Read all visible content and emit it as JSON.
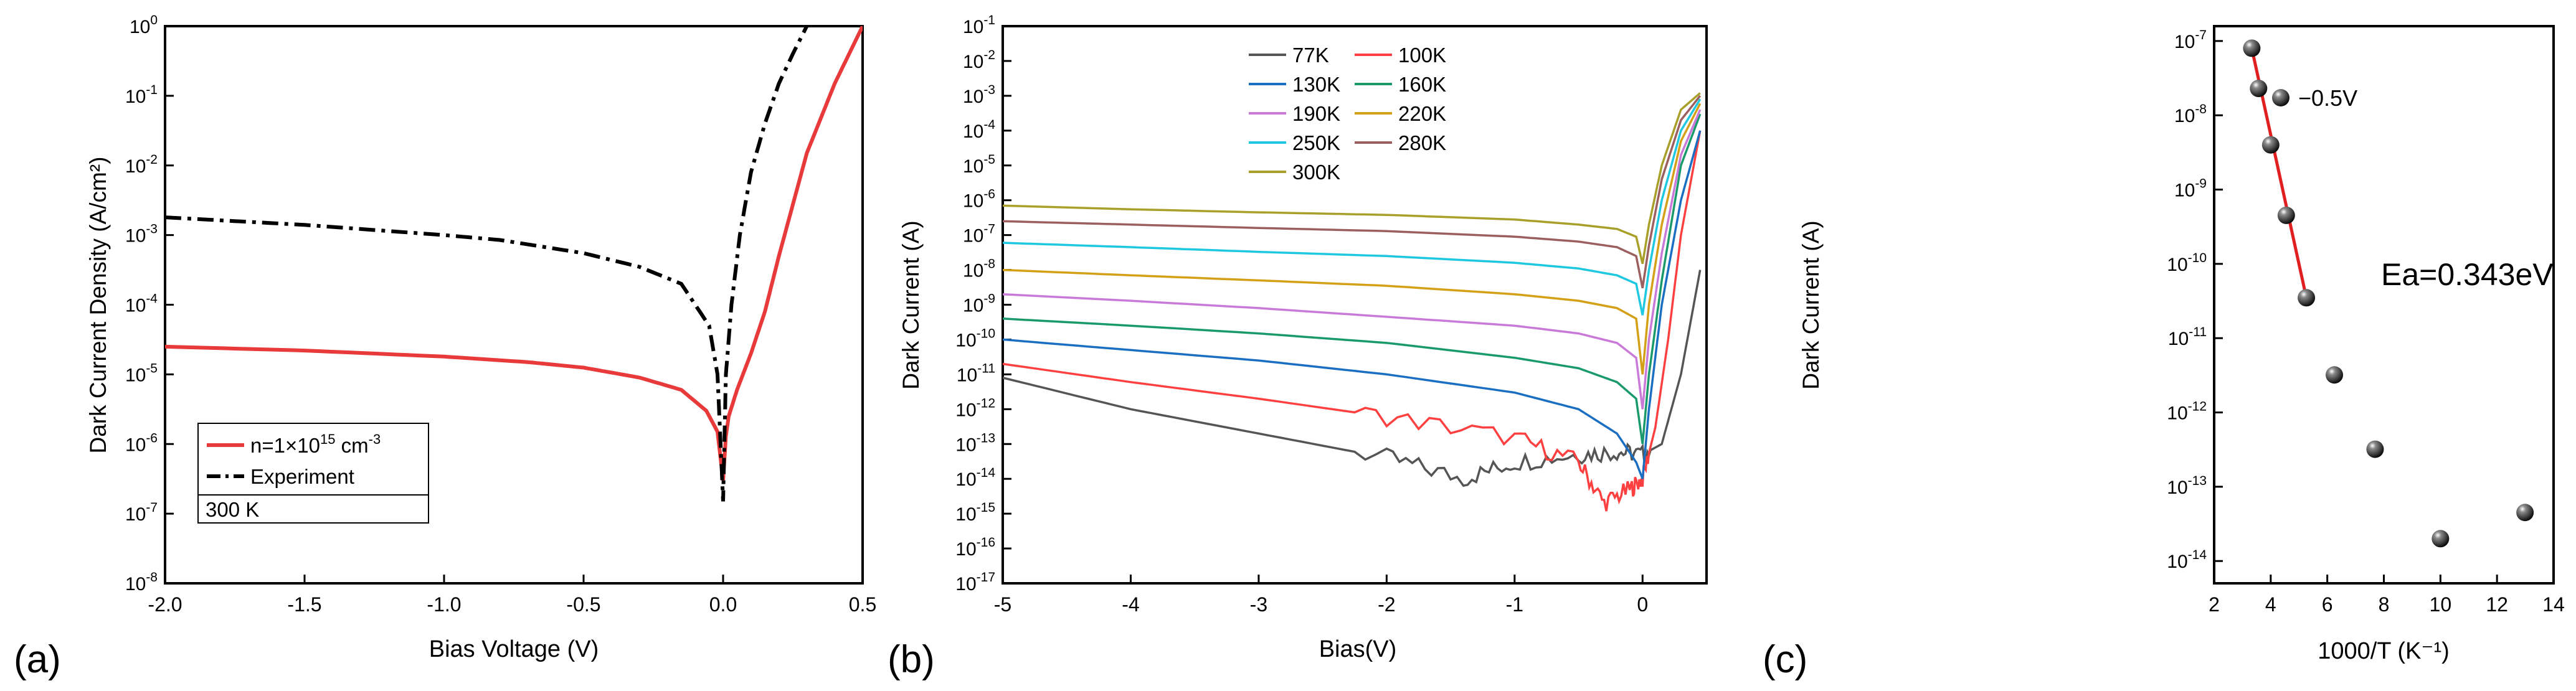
{
  "chart_data": [
    {
      "panel_label": "(a)",
      "type": "line",
      "xlabel": "Bias Voltage (V)",
      "ylabel": "Dark Current Density (A/cm²)",
      "yscale": "log",
      "xlim": [
        -2.0,
        0.5
      ],
      "ylim_exp": [
        -8,
        0
      ],
      "xticks": [
        "-2.0",
        "-1.5",
        "-1.0",
        "-0.5",
        "0.0",
        "0.5"
      ],
      "ytick_exps": [
        "-8",
        "-7",
        "-6",
        "-5",
        "-4",
        "-3",
        "-2",
        "-1",
        "0"
      ],
      "legend": {
        "entries": [
          {
            "label": "n=1×10",
            "sup": "15",
            "tail": " cm",
            "tail_sup": "-3",
            "color": "#e83a3a",
            "dash": "solid"
          },
          {
            "label": "Experiment",
            "color": "#000000",
            "dash": "dashdot"
          }
        ],
        "note": "300 K",
        "placement": "bottom-left"
      },
      "series": [
        {
          "name": "n=1×10^15 cm^-3",
          "color": "#e83a3a",
          "dash": "solid",
          "x": [
            -2.0,
            -1.5,
            -1.0,
            -0.7,
            -0.5,
            -0.3,
            -0.15,
            -0.06,
            -0.02,
            0.0,
            0.01,
            0.02,
            0.05,
            0.1,
            0.15,
            0.2,
            0.3,
            0.4,
            0.5
          ],
          "y": [
            2.5e-05,
            2.2e-05,
            1.8e-05,
            1.5e-05,
            1.25e-05,
            9e-06,
            6e-06,
            3e-06,
            1.5e-06,
            3e-07,
            1.3e-06,
            2.5e-06,
            6e-06,
            2e-05,
            8e-05,
            0.0005,
            0.015,
            0.15,
            1.0
          ]
        },
        {
          "name": "Experiment",
          "color": "#000000",
          "dash": "dashdot",
          "x": [
            -2.0,
            -1.5,
            -1.0,
            -0.8,
            -0.5,
            -0.3,
            -0.15,
            -0.05,
            -0.02,
            0.0,
            0.01,
            0.03,
            0.06,
            0.1,
            0.15,
            0.2,
            0.25,
            0.3
          ],
          "y": [
            0.0018,
            0.0014,
            0.001,
            0.00085,
            0.00055,
            0.00035,
            0.0002,
            5e-05,
            1e-05,
            1.5e-07,
            1e-05,
            0.0001,
            0.001,
            0.008,
            0.04,
            0.15,
            0.4,
            1.0
          ]
        }
      ]
    },
    {
      "panel_label": "(b)",
      "type": "line",
      "xlabel": "Bias(V)",
      "ylabel": "Dark Current (A)",
      "yscale": "log",
      "xlim": [
        -5,
        0.5
      ],
      "ylim_exp": [
        -17,
        -1
      ],
      "xticks": [
        "-5",
        "-4",
        "-3",
        "-2",
        "-1",
        "0"
      ],
      "ytick_exps": [
        "-17",
        "-16",
        "-15",
        "-14",
        "-13",
        "-12",
        "-11",
        "-10",
        "-9",
        "-8",
        "-7",
        "-6",
        "-5",
        "-4",
        "-3",
        "-2",
        "-1"
      ],
      "legend": {
        "placement": "top-center"
      },
      "series": [
        {
          "name": "77K",
          "color": "#555555",
          "noisy": true,
          "x": [
            -5,
            -4,
            -3,
            -2,
            -1.4,
            -1.0,
            -0.5,
            -0.2,
            0.0,
            0.15,
            0.3,
            0.45
          ],
          "y": [
            8e-12,
            1e-12,
            2e-13,
            4e-14,
            1e-14,
            3e-14,
            5e-14,
            6e-14,
            5e-14,
            1e-13,
            1e-11,
            1e-08
          ]
        },
        {
          "name": "100K",
          "color": "#ff4040",
          "noisy": true,
          "x": [
            -5,
            -4,
            -3,
            -2,
            -1.0,
            -0.5,
            -0.3,
            -0.1,
            0.0,
            0.1,
            0.2,
            0.3,
            0.45
          ],
          "y": [
            2e-11,
            6e-12,
            2e-12,
            6e-13,
            1.5e-13,
            3e-14,
            2e-15,
            5e-15,
            1e-14,
            3e-13,
            1e-10,
            1e-07,
            0.0001
          ]
        },
        {
          "name": "130K",
          "color": "#1a6fc2",
          "x": [
            -5,
            -4,
            -3,
            -2,
            -1,
            -0.5,
            -0.2,
            -0.05,
            0.0,
            0.05,
            0.15,
            0.3,
            0.45
          ],
          "y": [
            1e-10,
            5e-11,
            2.5e-11,
            1e-11,
            3e-12,
            1e-12,
            2e-13,
            3e-14,
            1e-14,
            1e-12,
            1e-09,
            1e-06,
            0.0001
          ]
        },
        {
          "name": "160K",
          "color": "#1a9a6a",
          "x": [
            -5,
            -4,
            -3,
            -2,
            -1,
            -0.5,
            -0.2,
            -0.05,
            0.0,
            0.05,
            0.15,
            0.3,
            0.45
          ],
          "y": [
            4e-10,
            2.5e-10,
            1.5e-10,
            8e-11,
            3e-11,
            1.5e-11,
            6e-12,
            2e-12,
            1e-13,
            1e-11,
            5e-09,
            1e-05,
            0.0003
          ]
        },
        {
          "name": "190K",
          "color": "#c97ad9",
          "x": [
            -5,
            -4,
            -3,
            -2,
            -1,
            -0.5,
            -0.2,
            -0.05,
            0.0,
            0.05,
            0.15,
            0.3,
            0.45
          ],
          "y": [
            2e-09,
            1.3e-09,
            8e-10,
            4.5e-10,
            2.5e-10,
            1.5e-10,
            8e-11,
            3e-11,
            1e-12,
            1e-10,
            3e-08,
            2e-05,
            0.0004
          ]
        },
        {
          "name": "220K",
          "color": "#d4a017",
          "x": [
            -5,
            -4,
            -3,
            -2,
            -1,
            -0.5,
            -0.2,
            -0.05,
            0.0,
            0.05,
            0.15,
            0.3,
            0.45
          ],
          "y": [
            1e-08,
            7e-09,
            5e-09,
            3.5e-09,
            2e-09,
            1.3e-09,
            8e-10,
            4e-10,
            1e-11,
            1e-09,
            2e-07,
            5e-05,
            0.0006
          ]
        },
        {
          "name": "250K",
          "color": "#1ec8e0",
          "x": [
            -5,
            -4,
            -3,
            -2,
            -1,
            -0.5,
            -0.2,
            -0.05,
            0.0,
            0.05,
            0.15,
            0.3,
            0.45
          ],
          "y": [
            6e-08,
            4.5e-08,
            3.3e-08,
            2.5e-08,
            1.6e-08,
            1.1e-08,
            7e-09,
            4e-09,
            5e-10,
            1e-08,
            1e-06,
            0.0001,
            0.0008
          ]
        },
        {
          "name": "280K",
          "color": "#9c5f5f",
          "x": [
            -5,
            -4,
            -3,
            -2,
            -1,
            -0.5,
            -0.2,
            -0.05,
            0.0,
            0.05,
            0.15,
            0.3,
            0.45
          ],
          "y": [
            2.5e-07,
            2e-07,
            1.6e-07,
            1.3e-07,
            9e-08,
            6.5e-08,
            4.5e-08,
            2.5e-08,
            3e-09,
            5e-08,
            4e-06,
            0.0002,
            0.001
          ]
        },
        {
          "name": "300K",
          "color": "#a8a02a",
          "x": [
            -5,
            -4,
            -3,
            -2,
            -1,
            -0.5,
            -0.2,
            -0.05,
            0.0,
            0.05,
            0.15,
            0.3,
            0.45
          ],
          "y": [
            7e-07,
            5.5e-07,
            4.5e-07,
            3.8e-07,
            2.8e-07,
            2e-07,
            1.5e-07,
            9e-08,
            1.5e-08,
            2e-07,
            1e-05,
            0.0004,
            0.0012
          ]
        }
      ]
    },
    {
      "panel_label": "(c)",
      "type": "scatter",
      "xlabel": "1000/T  (K⁻¹)",
      "ylabel": "Dark Current (A)",
      "yscale": "log",
      "xlim": [
        2,
        14
      ],
      "ylim_exp": [
        -14.3,
        -6.8
      ],
      "xticks": [
        "2",
        "4",
        "6",
        "8",
        "10",
        "12",
        "14"
      ],
      "ytick_exps": [
        "-14",
        "-13",
        "-12",
        "-11",
        "-10",
        "-9",
        "-8",
        "-7"
      ],
      "legend": {
        "label": "−0.5V",
        "placement": "top-right"
      },
      "annotation": "Ea=0.343eV",
      "points": {
        "x": [
          3.33,
          3.57,
          4.0,
          4.55,
          5.26,
          6.25,
          7.69,
          10.0,
          12.99
        ],
        "y": [
          8e-08,
          2.3e-08,
          4e-09,
          4.5e-10,
          3.5e-11,
          3.2e-12,
          3.2e-13,
          2e-14,
          4.5e-14
        ]
      },
      "fit": {
        "color": "#e02020",
        "x": [
          3.33,
          5.26
        ],
        "y": [
          8e-08,
          3.5e-11
        ]
      }
    }
  ]
}
